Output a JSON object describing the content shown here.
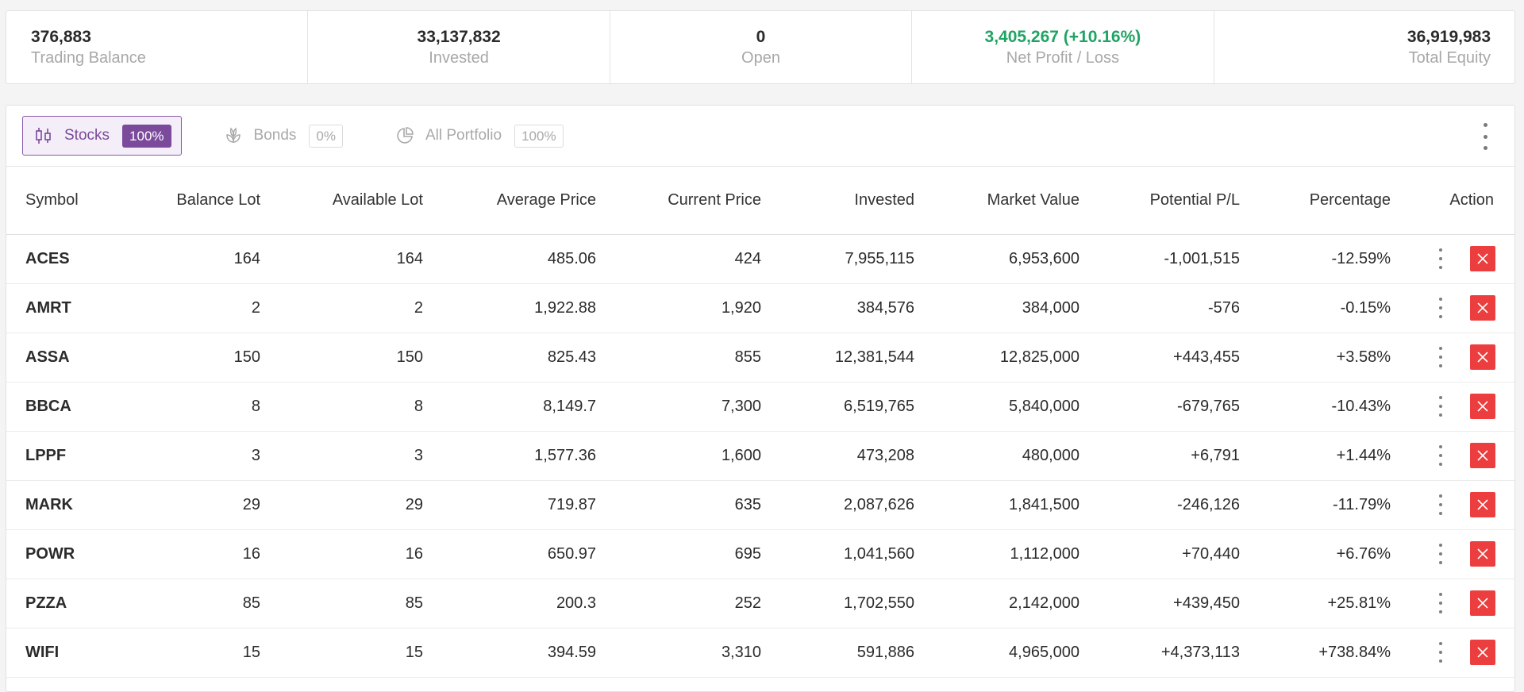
{
  "summary": [
    {
      "value": "376,883",
      "label": "Trading Balance",
      "align": "left",
      "tone": ""
    },
    {
      "value": "33,137,832",
      "label": "Invested",
      "align": "center",
      "tone": ""
    },
    {
      "value": "0",
      "label": "Open",
      "align": "center",
      "tone": ""
    },
    {
      "value": "3,405,267 (+10.16%)",
      "label": "Net Profit / Loss",
      "align": "center",
      "tone": "positive"
    },
    {
      "value": "36,919,983",
      "label": "Total Equity",
      "align": "right",
      "tone": ""
    }
  ],
  "tabs": [
    {
      "label": "Stocks",
      "badge": "100%",
      "icon": "candlestick-icon",
      "active": true
    },
    {
      "label": "Bonds",
      "badge": "0%",
      "icon": "bonds-icon",
      "active": false
    },
    {
      "label": "All Portfolio",
      "badge": "100%",
      "icon": "pie-chart-icon",
      "active": false
    }
  ],
  "columns": [
    "Symbol",
    "Balance Lot",
    "Available Lot",
    "Average Price",
    "Current Price",
    "Invested",
    "Market Value",
    "Potential P/L",
    "Percentage",
    "Action"
  ],
  "rows": [
    {
      "symbol": "ACES",
      "balance_lot": "164",
      "available_lot": "164",
      "average_price": "485.06",
      "current_price": "424",
      "invested": "7,955,115",
      "market_value": "6,953,600",
      "potential_pl": "-1,001,515",
      "percentage": "-12.59%",
      "trend": "neg"
    },
    {
      "symbol": "AMRT",
      "balance_lot": "2",
      "available_lot": "2",
      "average_price": "1,922.88",
      "current_price": "1,920",
      "invested": "384,576",
      "market_value": "384,000",
      "potential_pl": "-576",
      "percentage": "-0.15%",
      "trend": "neg"
    },
    {
      "symbol": "ASSA",
      "balance_lot": "150",
      "available_lot": "150",
      "average_price": "825.43",
      "current_price": "855",
      "invested": "12,381,544",
      "market_value": "12,825,000",
      "potential_pl": "+443,455",
      "percentage": "+3.58%",
      "trend": "pos"
    },
    {
      "symbol": "BBCA",
      "balance_lot": "8",
      "available_lot": "8",
      "average_price": "8,149.7",
      "current_price": "7,300",
      "invested": "6,519,765",
      "market_value": "5,840,000",
      "potential_pl": "-679,765",
      "percentage": "-10.43%",
      "trend": "neg"
    },
    {
      "symbol": "LPPF",
      "balance_lot": "3",
      "available_lot": "3",
      "average_price": "1,577.36",
      "current_price": "1,600",
      "invested": "473,208",
      "market_value": "480,000",
      "potential_pl": "+6,791",
      "percentage": "+1.44%",
      "trend": "pos"
    },
    {
      "symbol": "MARK",
      "balance_lot": "29",
      "available_lot": "29",
      "average_price": "719.87",
      "current_price": "635",
      "invested": "2,087,626",
      "market_value": "1,841,500",
      "potential_pl": "-246,126",
      "percentage": "-11.79%",
      "trend": "neg"
    },
    {
      "symbol": "POWR",
      "balance_lot": "16",
      "available_lot": "16",
      "average_price": "650.97",
      "current_price": "695",
      "invested": "1,041,560",
      "market_value": "1,112,000",
      "potential_pl": "+70,440",
      "percentage": "+6.76%",
      "trend": "pos"
    },
    {
      "symbol": "PZZA",
      "balance_lot": "85",
      "available_lot": "85",
      "average_price": "200.3",
      "current_price": "252",
      "invested": "1,702,550",
      "market_value": "2,142,000",
      "potential_pl": "+439,450",
      "percentage": "+25.81%",
      "trend": "pos"
    },
    {
      "symbol": "WIFI",
      "balance_lot": "15",
      "available_lot": "15",
      "average_price": "394.59",
      "current_price": "3,310",
      "invested": "591,886",
      "market_value": "4,965,000",
      "potential_pl": "+4,373,113",
      "percentage": "+738.84%",
      "trend": "pos"
    }
  ],
  "colors": {
    "accent": "#7b4a9b",
    "positive": "#1fa463",
    "negative": "#e8484a",
    "close_button": "#ec3e3e"
  },
  "icons": {
    "panel_menu": "more-vertical-icon",
    "row_menu": "more-vertical-icon",
    "row_close": "close-icon"
  }
}
